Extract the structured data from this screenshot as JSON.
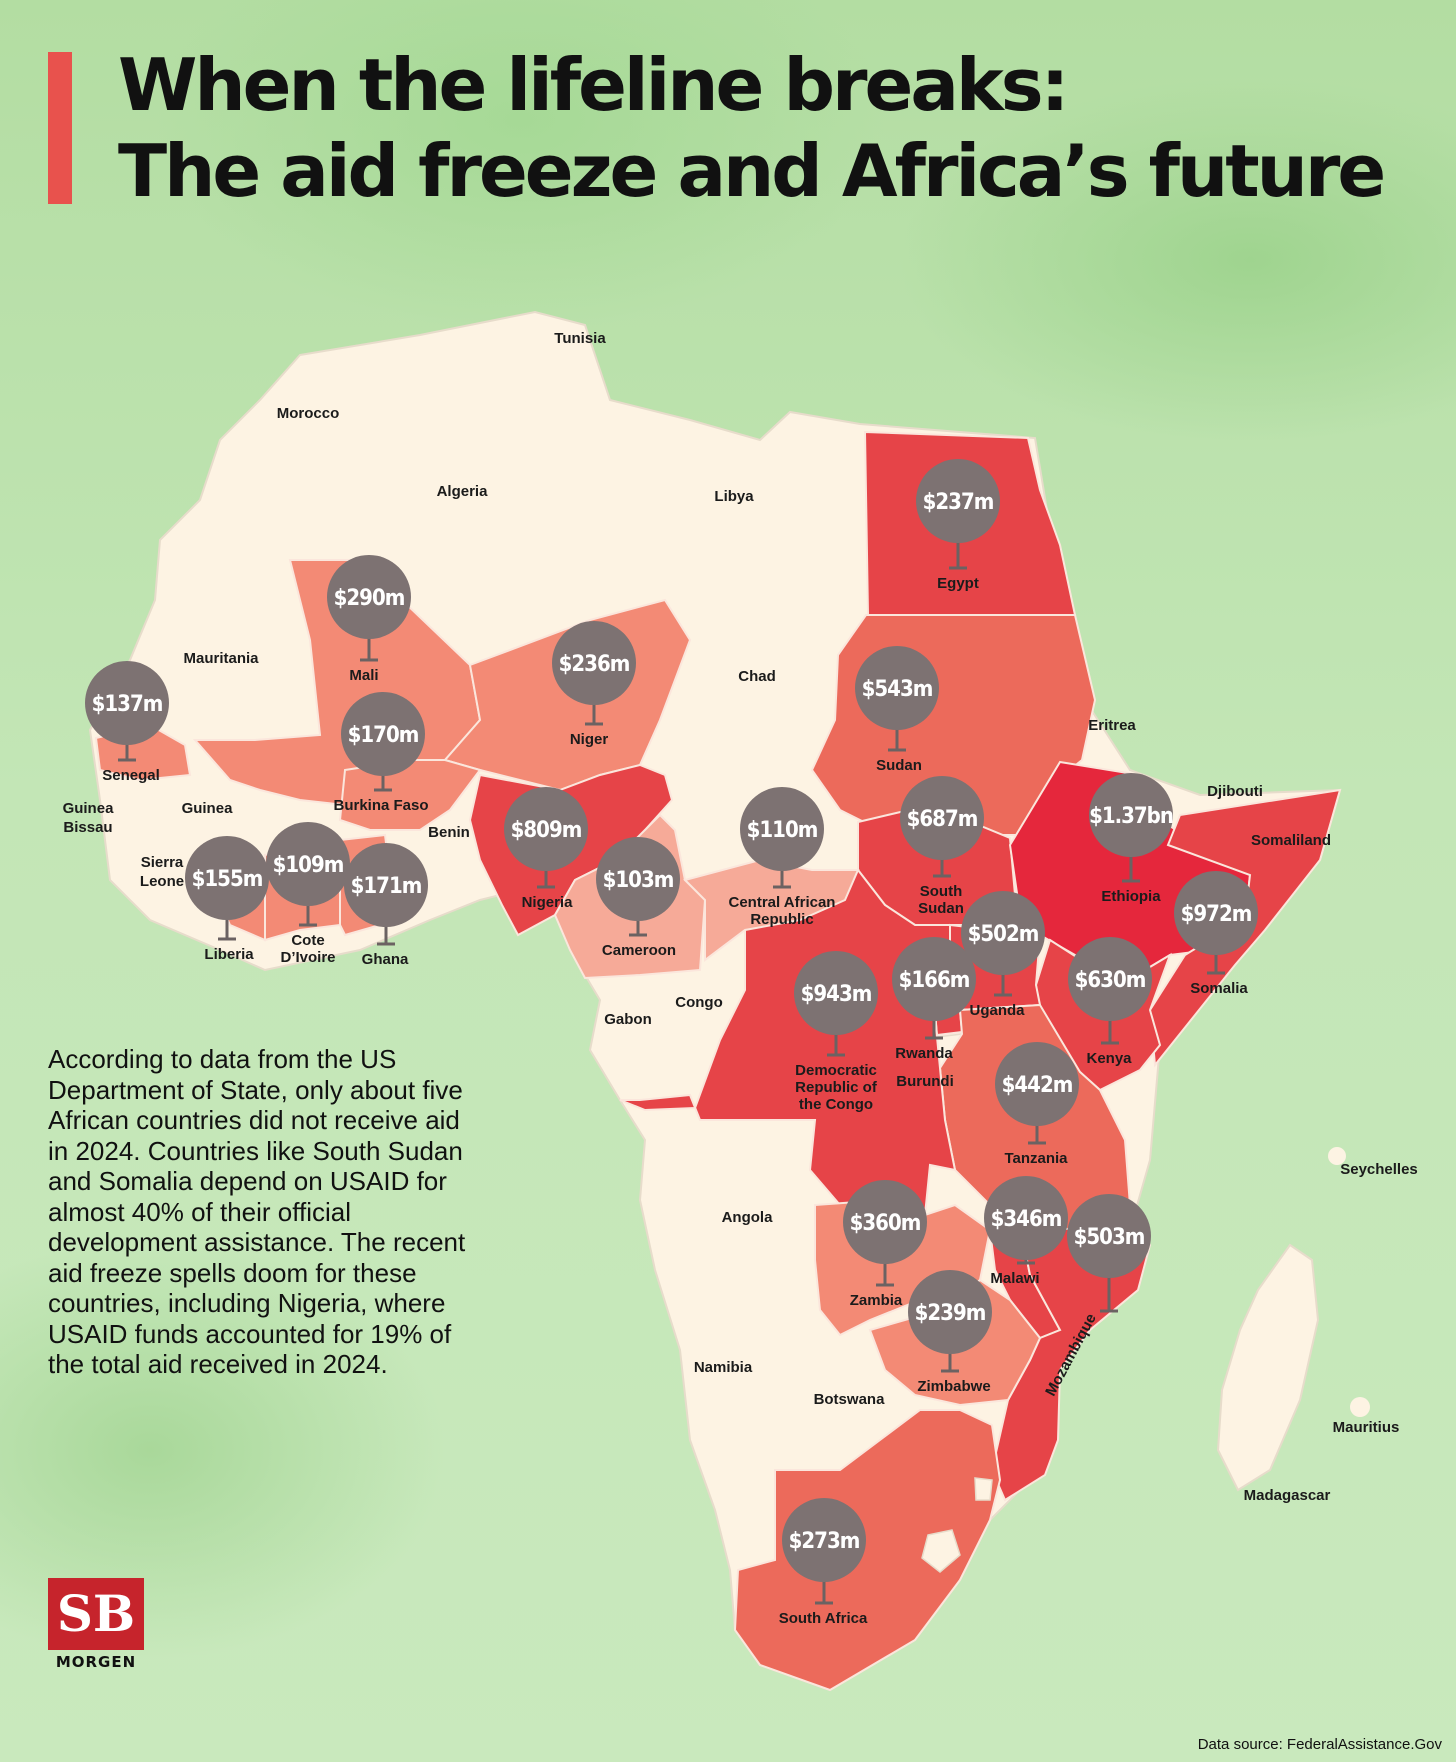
{
  "header": {
    "title_line1": "When the lifeline breaks:",
    "title_line2": "The aid freeze and Africa’s future"
  },
  "body_text": "According to data from the US Department of State, only about five African countries did not receive aid in 2024. Countries like South Sudan and Somalia depend on USAID for almost 40% of their official development assistance. The recent aid freeze spells doom for these countries, including Nigeria, where USAID funds accounted for 19% of the total aid received in 2024.",
  "logo": {
    "mark": "SB",
    "word": "MORGEN"
  },
  "source": "Data source: FederalAssistance.Gov",
  "colors": {
    "no_data": "#fdf3e3",
    "low": "#f6aa98",
    "mid": "#f38a75",
    "high": "#ec6a5b",
    "very_high": "#e64448",
    "top": "#e5273c",
    "bubble": "#7d7272"
  },
  "map": {
    "unlabeled_country_names": [
      "Tunisia",
      "Morocco",
      "Algeria",
      "Libya",
      "Mauritania",
      "Chad",
      "Eritrea",
      "Djibouti",
      "Somaliland",
      "Guinea Bissau",
      "Guinea",
      "Sierra Leone",
      "Benin",
      "Gabon",
      "Congo",
      "Seychelles",
      "Angola",
      "Namibia",
      "Botswana",
      "Mauritius",
      "Madagascar"
    ],
    "aid_by_country": [
      {
        "country": "Egypt",
        "aid": "$237m"
      },
      {
        "country": "Mali",
        "aid": "$290m"
      },
      {
        "country": "Niger",
        "aid": "$236m"
      },
      {
        "country": "Senegal",
        "aid": "$137m"
      },
      {
        "country": "Burkina Faso",
        "aid": "$170m"
      },
      {
        "country": "Sudan",
        "aid": "$543m"
      },
      {
        "country": "Nigeria",
        "aid": "$809m"
      },
      {
        "country": "Central African Republic",
        "aid": "$110m"
      },
      {
        "country": "Cameroon",
        "aid": "$103m"
      },
      {
        "country": "South Sudan",
        "aid": "$687m"
      },
      {
        "country": "Ethiopia",
        "aid": "$1.37bn"
      },
      {
        "country": "Liberia",
        "aid": "$155m"
      },
      {
        "country": "Cote D’Ivoire",
        "aid": "$109m"
      },
      {
        "country": "Ghana",
        "aid": "$171m"
      },
      {
        "country": "Somalia",
        "aid": "$972m"
      },
      {
        "country": "Uganda",
        "aid": "$502m"
      },
      {
        "country": "Democratic Republic of the Congo",
        "aid": "$943m"
      },
      {
        "country": "Rwanda",
        "aid": "$166m"
      },
      {
        "country": "Kenya",
        "aid": "$630m"
      },
      {
        "country": "Tanzania",
        "aid": "$442m"
      },
      {
        "country": "Zambia",
        "aid": "$360m"
      },
      {
        "country": "Malawi",
        "aid": "$346m"
      },
      {
        "country": "Mozambique",
        "aid": "$503m"
      },
      {
        "country": "Zimbabwe",
        "aid": "$239m"
      },
      {
        "country": "South Africa",
        "aid": "$273m"
      }
    ],
    "other_labels": [
      "Burundi"
    ]
  }
}
